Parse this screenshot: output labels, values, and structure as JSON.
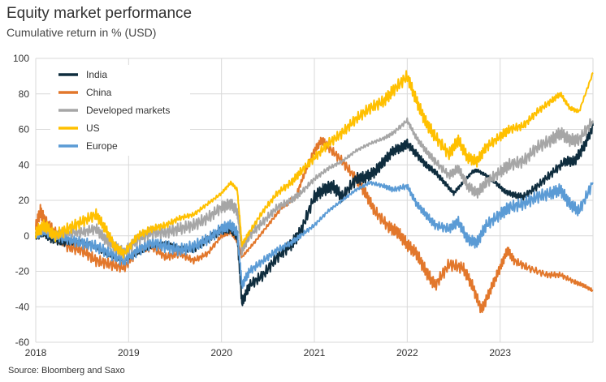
{
  "title": "Equity market performance",
  "subtitle": "Cumulative return in % (USD)",
  "source": "Source: Bloomberg and Saxo",
  "chart_data": {
    "type": "line",
    "title": "Equity market performance",
    "subtitle": "Cumulative return in % (USD)",
    "xlabel": "",
    "ylabel": "",
    "xlim": [
      2018.0,
      2024.0
    ],
    "ylim": [
      -60,
      100
    ],
    "yticks": [
      100,
      80,
      60,
      40,
      20,
      0,
      -20,
      -40,
      -60
    ],
    "ytick_labels": [
      "100",
      "80",
      "60",
      "40",
      "20",
      "0",
      "-20",
      "-40",
      "-60"
    ],
    "xticks": [
      2018,
      2019,
      2020,
      2021,
      2022,
      2023
    ],
    "xtick_labels": [
      "2018",
      "2019",
      "2020",
      "2021",
      "2022",
      "2023"
    ],
    "grid": true,
    "legend_position": "top-left",
    "series": [
      {
        "name": "India",
        "color": "#0f2d3e",
        "points": [
          [
            2018.0,
            0
          ],
          [
            2018.08,
            2
          ],
          [
            2018.17,
            -2
          ],
          [
            2018.3,
            -4
          ],
          [
            2018.45,
            -3
          ],
          [
            2018.6,
            -5
          ],
          [
            2018.75,
            -10
          ],
          [
            2018.85,
            -12
          ],
          [
            2018.95,
            -14
          ],
          [
            2019.1,
            -10
          ],
          [
            2019.25,
            -6
          ],
          [
            2019.4,
            -4
          ],
          [
            2019.55,
            -7
          ],
          [
            2019.7,
            -8
          ],
          [
            2019.85,
            -2
          ],
          [
            2020.0,
            3
          ],
          [
            2020.1,
            4
          ],
          [
            2020.17,
            0
          ],
          [
            2020.22,
            -38
          ],
          [
            2020.3,
            -28
          ],
          [
            2020.45,
            -22
          ],
          [
            2020.6,
            -12
          ],
          [
            2020.75,
            -5
          ],
          [
            2020.85,
            2
          ],
          [
            2021.0,
            22
          ],
          [
            2021.1,
            26
          ],
          [
            2021.2,
            28
          ],
          [
            2021.3,
            22
          ],
          [
            2021.45,
            32
          ],
          [
            2021.55,
            33
          ],
          [
            2021.65,
            36
          ],
          [
            2021.75,
            42
          ],
          [
            2021.85,
            48
          ],
          [
            2021.95,
            50
          ],
          [
            2022.0,
            52
          ],
          [
            2022.1,
            46
          ],
          [
            2022.2,
            40
          ],
          [
            2022.3,
            36
          ],
          [
            2022.4,
            30
          ],
          [
            2022.5,
            24
          ],
          [
            2022.6,
            30
          ],
          [
            2022.7,
            36
          ],
          [
            2022.75,
            37
          ],
          [
            2022.85,
            34
          ],
          [
            2022.95,
            30
          ],
          [
            2023.05,
            25
          ],
          [
            2023.15,
            23
          ],
          [
            2023.25,
            22
          ],
          [
            2023.4,
            28
          ],
          [
            2023.55,
            35
          ],
          [
            2023.7,
            42
          ],
          [
            2023.8,
            42
          ],
          [
            2023.9,
            50
          ],
          [
            2024.0,
            62
          ]
        ]
      },
      {
        "name": "China",
        "color": "#e2772b",
        "points": [
          [
            2018.0,
            5
          ],
          [
            2018.05,
            14
          ],
          [
            2018.1,
            8
          ],
          [
            2018.2,
            2
          ],
          [
            2018.35,
            -6
          ],
          [
            2018.5,
            -8
          ],
          [
            2018.65,
            -14
          ],
          [
            2018.8,
            -16
          ],
          [
            2018.95,
            -18
          ],
          [
            2019.1,
            -8
          ],
          [
            2019.25,
            -6
          ],
          [
            2019.4,
            -12
          ],
          [
            2019.55,
            -10
          ],
          [
            2019.7,
            -14
          ],
          [
            2019.85,
            -10
          ],
          [
            2020.0,
            0
          ],
          [
            2020.1,
            2
          ],
          [
            2020.18,
            -4
          ],
          [
            2020.22,
            -12
          ],
          [
            2020.35,
            -4
          ],
          [
            2020.5,
            6
          ],
          [
            2020.65,
            16
          ],
          [
            2020.8,
            22
          ],
          [
            2020.9,
            36
          ],
          [
            2021.0,
            48
          ],
          [
            2021.08,
            54
          ],
          [
            2021.15,
            50
          ],
          [
            2021.3,
            42
          ],
          [
            2021.45,
            32
          ],
          [
            2021.55,
            24
          ],
          [
            2021.65,
            14
          ],
          [
            2021.8,
            5
          ],
          [
            2021.9,
            2
          ],
          [
            2022.0,
            -5
          ],
          [
            2022.1,
            -10
          ],
          [
            2022.2,
            -20
          ],
          [
            2022.3,
            -28
          ],
          [
            2022.45,
            -16
          ],
          [
            2022.6,
            -18
          ],
          [
            2022.7,
            -28
          ],
          [
            2022.8,
            -42
          ],
          [
            2022.9,
            -30
          ],
          [
            2023.0,
            -18
          ],
          [
            2023.08,
            -8
          ],
          [
            2023.15,
            -14
          ],
          [
            2023.3,
            -18
          ],
          [
            2023.5,
            -22
          ],
          [
            2023.65,
            -22
          ],
          [
            2023.8,
            -26
          ],
          [
            2023.9,
            -28
          ],
          [
            2024.0,
            -31
          ]
        ]
      },
      {
        "name": "Developed markets",
        "color": "#a6a6a6",
        "points": [
          [
            2018.0,
            1
          ],
          [
            2018.1,
            4
          ],
          [
            2018.2,
            0
          ],
          [
            2018.35,
            2
          ],
          [
            2018.5,
            2
          ],
          [
            2018.65,
            4
          ],
          [
            2018.75,
            -2
          ],
          [
            2018.85,
            -6
          ],
          [
            2018.95,
            -10
          ],
          [
            2019.1,
            -2
          ],
          [
            2019.25,
            2
          ],
          [
            2019.4,
            2
          ],
          [
            2019.55,
            4
          ],
          [
            2019.7,
            6
          ],
          [
            2019.85,
            10
          ],
          [
            2020.0,
            16
          ],
          [
            2020.1,
            18
          ],
          [
            2020.17,
            14
          ],
          [
            2020.22,
            -8
          ],
          [
            2020.3,
            0
          ],
          [
            2020.45,
            8
          ],
          [
            2020.6,
            16
          ],
          [
            2020.75,
            20
          ],
          [
            2020.85,
            24
          ],
          [
            2021.0,
            32
          ],
          [
            2021.15,
            38
          ],
          [
            2021.3,
            42
          ],
          [
            2021.45,
            48
          ],
          [
            2021.6,
            52
          ],
          [
            2021.75,
            55
          ],
          [
            2021.85,
            58
          ],
          [
            2022.0,
            65
          ],
          [
            2022.1,
            55
          ],
          [
            2022.2,
            48
          ],
          [
            2022.3,
            42
          ],
          [
            2022.45,
            34
          ],
          [
            2022.55,
            38
          ],
          [
            2022.65,
            28
          ],
          [
            2022.75,
            24
          ],
          [
            2022.85,
            30
          ],
          [
            2023.0,
            36
          ],
          [
            2023.1,
            40
          ],
          [
            2023.25,
            42
          ],
          [
            2023.4,
            50
          ],
          [
            2023.55,
            54
          ],
          [
            2023.65,
            58
          ],
          [
            2023.75,
            54
          ],
          [
            2023.85,
            54
          ],
          [
            2024.0,
            65
          ]
        ]
      },
      {
        "name": "US",
        "color": "#ffc000",
        "points": [
          [
            2018.0,
            2
          ],
          [
            2018.1,
            6
          ],
          [
            2018.2,
            0
          ],
          [
            2018.35,
            4
          ],
          [
            2018.5,
            8
          ],
          [
            2018.65,
            12
          ],
          [
            2018.75,
            4
          ],
          [
            2018.85,
            -6
          ],
          [
            2018.95,
            -10
          ],
          [
            2019.1,
            0
          ],
          [
            2019.25,
            4
          ],
          [
            2019.4,
            6
          ],
          [
            2019.55,
            10
          ],
          [
            2019.7,
            12
          ],
          [
            2019.85,
            18
          ],
          [
            2020.0,
            24
          ],
          [
            2020.1,
            30
          ],
          [
            2020.17,
            26
          ],
          [
            2020.22,
            -5
          ],
          [
            2020.3,
            2
          ],
          [
            2020.45,
            14
          ],
          [
            2020.6,
            24
          ],
          [
            2020.75,
            30
          ],
          [
            2020.85,
            36
          ],
          [
            2021.0,
            44
          ],
          [
            2021.15,
            52
          ],
          [
            2021.3,
            58
          ],
          [
            2021.45,
            66
          ],
          [
            2021.6,
            72
          ],
          [
            2021.75,
            76
          ],
          [
            2021.85,
            82
          ],
          [
            2022.0,
            90
          ],
          [
            2022.1,
            76
          ],
          [
            2022.2,
            64
          ],
          [
            2022.3,
            56
          ],
          [
            2022.45,
            46
          ],
          [
            2022.55,
            54
          ],
          [
            2022.65,
            44
          ],
          [
            2022.75,
            42
          ],
          [
            2022.85,
            50
          ],
          [
            2023.0,
            56
          ],
          [
            2023.1,
            60
          ],
          [
            2023.25,
            62
          ],
          [
            2023.4,
            70
          ],
          [
            2023.55,
            76
          ],
          [
            2023.65,
            80
          ],
          [
            2023.75,
            72
          ],
          [
            2023.85,
            70
          ],
          [
            2024.0,
            92
          ]
        ]
      },
      {
        "name": "Europe",
        "color": "#5b9bd5",
        "points": [
          [
            2018.0,
            0
          ],
          [
            2018.08,
            3
          ],
          [
            2018.2,
            0
          ],
          [
            2018.35,
            -2
          ],
          [
            2018.5,
            -4
          ],
          [
            2018.65,
            -6
          ],
          [
            2018.8,
            -10
          ],
          [
            2018.95,
            -14
          ],
          [
            2019.1,
            -8
          ],
          [
            2019.25,
            -4
          ],
          [
            2019.4,
            -6
          ],
          [
            2019.55,
            -8
          ],
          [
            2019.7,
            -6
          ],
          [
            2019.85,
            -2
          ],
          [
            2020.0,
            4
          ],
          [
            2020.1,
            6
          ],
          [
            2020.17,
            2
          ],
          [
            2020.22,
            -28
          ],
          [
            2020.3,
            -20
          ],
          [
            2020.45,
            -14
          ],
          [
            2020.6,
            -8
          ],
          [
            2020.75,
            -4
          ],
          [
            2020.85,
            0
          ],
          [
            2021.0,
            6
          ],
          [
            2021.15,
            14
          ],
          [
            2021.3,
            20
          ],
          [
            2021.45,
            26
          ],
          [
            2021.6,
            30
          ],
          [
            2021.75,
            28
          ],
          [
            2021.85,
            26
          ],
          [
            2022.0,
            28
          ],
          [
            2022.1,
            18
          ],
          [
            2022.2,
            12
          ],
          [
            2022.3,
            6
          ],
          [
            2022.45,
            4
          ],
          [
            2022.55,
            8
          ],
          [
            2022.65,
            -2
          ],
          [
            2022.75,
            -4
          ],
          [
            2022.85,
            6
          ],
          [
            2023.0,
            12
          ],
          [
            2023.1,
            16
          ],
          [
            2023.25,
            18
          ],
          [
            2023.4,
            22
          ],
          [
            2023.55,
            24
          ],
          [
            2023.65,
            26
          ],
          [
            2023.75,
            18
          ],
          [
            2023.85,
            14
          ],
          [
            2024.0,
            30
          ]
        ]
      }
    ]
  }
}
